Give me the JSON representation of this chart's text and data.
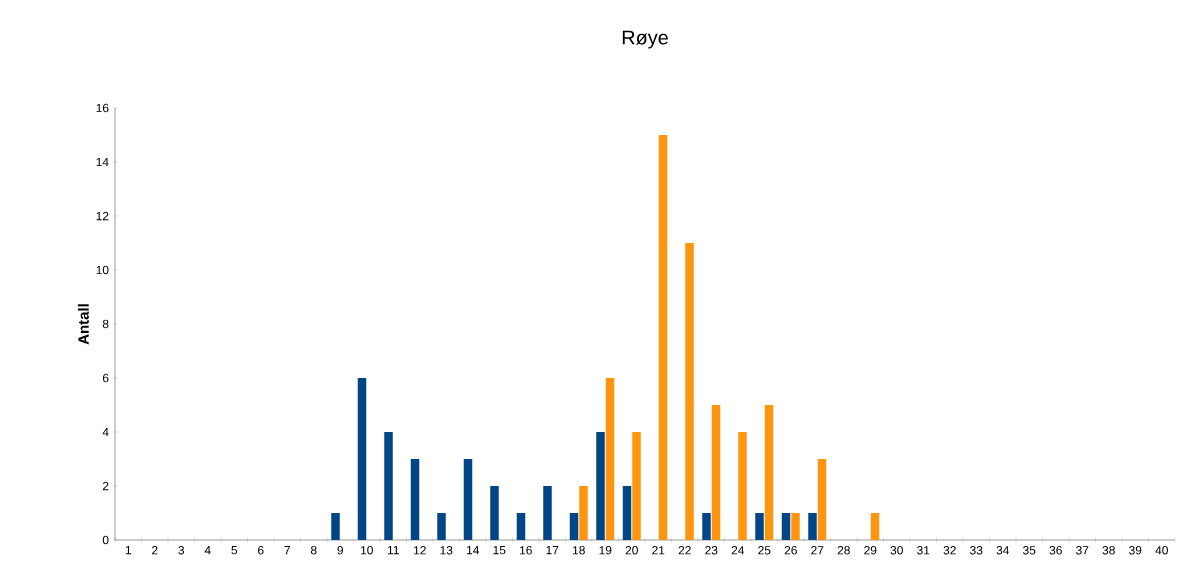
{
  "chart_data": {
    "type": "bar",
    "title": "Røye",
    "ylabel": "Antall",
    "categories": [
      "1",
      "2",
      "3",
      "4",
      "5",
      "6",
      "7",
      "8",
      "9",
      "10",
      "11",
      "12",
      "13",
      "14",
      "15",
      "16",
      "17",
      "18",
      "19",
      "20",
      "21",
      "22",
      "23",
      "24",
      "25",
      "26",
      "27",
      "28",
      "29",
      "30",
      "31",
      "32",
      "33",
      "34",
      "35",
      "36",
      "37",
      "38",
      "39",
      "40"
    ],
    "series": [
      {
        "color": "#004586",
        "values": [
          null,
          null,
          null,
          null,
          null,
          null,
          null,
          null,
          1,
          6,
          4,
          3,
          1,
          3,
          2,
          1,
          2,
          1,
          4,
          2,
          null,
          null,
          1,
          null,
          1,
          1,
          1,
          null,
          null,
          null,
          null,
          null,
          null,
          null,
          null,
          null,
          null,
          null,
          null,
          null
        ]
      },
      {
        "color": "#ff950e",
        "values": [
          null,
          null,
          null,
          null,
          null,
          null,
          null,
          null,
          null,
          null,
          null,
          null,
          null,
          null,
          null,
          null,
          null,
          2,
          6,
          4,
          15,
          11,
          5,
          4,
          5,
          1,
          3,
          null,
          1,
          null,
          null,
          null,
          null,
          null,
          null,
          null,
          null,
          null,
          null,
          null
        ]
      }
    ],
    "ylim": [
      0,
      16
    ],
    "yticks": [
      0,
      2,
      4,
      6,
      8,
      10,
      12,
      14,
      16
    ]
  }
}
